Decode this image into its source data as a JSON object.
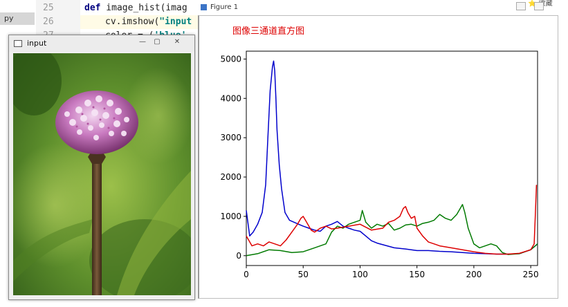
{
  "editor": {
    "side_tab_label": "py",
    "lines": [
      {
        "num": "25",
        "text_kw": "def",
        "text_rest": " image_hist(imag"
      },
      {
        "num": "26",
        "text_pre": "cv.imshow(",
        "text_str": "\"input"
      },
      {
        "num": "27",
        "text_pre": "color = (",
        "text_str": "'blue'"
      }
    ]
  },
  "input_window": {
    "title": "input",
    "buttons": {
      "minimize": "—",
      "maximize": "▢",
      "close": "✕"
    }
  },
  "figure_window": {
    "title": "Figure 1",
    "badge": "⭐ 收藏"
  },
  "colors": {
    "blue": "#0000cc",
    "green": "#007a00",
    "red": "#dd0000",
    "title_red": "#dd0000"
  },
  "chart_data": {
    "type": "line",
    "title": "图像三通道直方图",
    "xlim": [
      0,
      256
    ],
    "ylim": [
      -250,
      5200
    ],
    "xticks": [
      0,
      50,
      100,
      150,
      200,
      250
    ],
    "yticks": [
      0,
      1000,
      2000,
      3000,
      4000,
      5000
    ],
    "grid": false,
    "series": [
      {
        "color": "blue",
        "x": [
          0,
          3,
          6,
          10,
          14,
          17,
          19,
          21,
          23,
          24,
          25,
          26,
          27,
          29,
          31,
          34,
          38,
          42,
          46,
          50,
          55,
          60,
          65,
          70,
          75,
          80,
          85,
          90,
          95,
          100,
          105,
          110,
          115,
          120,
          130,
          140,
          150,
          160,
          170,
          180,
          190,
          200,
          210,
          220,
          230,
          240,
          250,
          254,
          256
        ],
        "y": [
          1150,
          500,
          600,
          800,
          1100,
          1800,
          3000,
          4200,
          4800,
          4950,
          4700,
          4000,
          3200,
          2300,
          1700,
          1100,
          900,
          850,
          800,
          750,
          700,
          650,
          620,
          750,
          800,
          870,
          750,
          700,
          650,
          620,
          500,
          380,
          320,
          280,
          200,
          170,
          130,
          130,
          110,
          100,
          80,
          60,
          50,
          40,
          40,
          50,
          150,
          250,
          300
        ]
      },
      {
        "color": "green",
        "x": [
          0,
          10,
          20,
          30,
          40,
          50,
          60,
          70,
          75,
          80,
          85,
          90,
          95,
          100,
          102,
          105,
          110,
          115,
          120,
          125,
          130,
          135,
          140,
          145,
          150,
          155,
          160,
          165,
          170,
          175,
          180,
          185,
          188,
          190,
          192,
          195,
          200,
          205,
          210,
          215,
          220,
          225,
          230,
          240,
          250,
          254,
          256
        ],
        "y": [
          0,
          50,
          150,
          130,
          80,
          100,
          200,
          300,
          600,
          750,
          700,
          800,
          850,
          900,
          1150,
          850,
          700,
          800,
          750,
          820,
          650,
          700,
          780,
          800,
          750,
          820,
          850,
          900,
          1050,
          950,
          900,
          1050,
          1200,
          1300,
          1100,
          700,
          300,
          200,
          250,
          300,
          250,
          80,
          30,
          50,
          150,
          250,
          300
        ]
      },
      {
        "color": "red",
        "x": [
          0,
          2,
          5,
          10,
          15,
          20,
          25,
          30,
          35,
          40,
          45,
          48,
          50,
          53,
          57,
          60,
          65,
          70,
          75,
          80,
          90,
          100,
          110,
          120,
          125,
          130,
          135,
          138,
          140,
          142,
          145,
          148,
          150,
          155,
          160,
          165,
          170,
          180,
          190,
          200,
          210,
          220,
          230,
          240,
          250,
          253,
          254,
          255
        ],
        "y": [
          500,
          400,
          250,
          300,
          250,
          350,
          300,
          250,
          400,
          600,
          800,
          950,
          1000,
          850,
          650,
          600,
          700,
          750,
          680,
          700,
          750,
          800,
          650,
          700,
          850,
          900,
          1000,
          1200,
          1250,
          1100,
          950,
          1000,
          700,
          500,
          350,
          300,
          250,
          200,
          150,
          100,
          60,
          40,
          40,
          60,
          150,
          300,
          1000,
          1800
        ]
      }
    ]
  }
}
